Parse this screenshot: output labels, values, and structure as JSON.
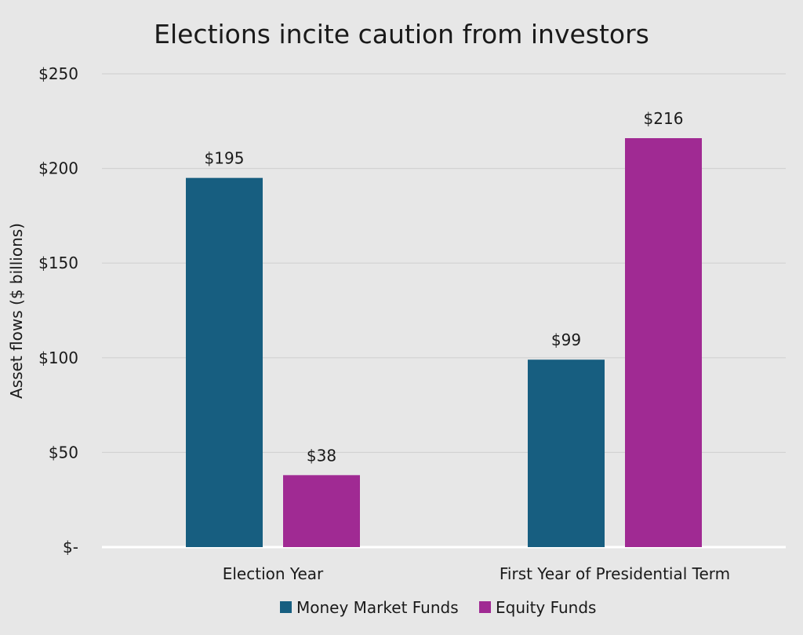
{
  "chart_data": {
    "type": "bar",
    "title": "Elections incite caution from investors",
    "ylabel": "Asset flows ($ billions)",
    "xlabel": "",
    "categories": [
      "Election Year",
      "First Year of Presidential Term"
    ],
    "series": [
      {
        "name": "Money Market Funds",
        "values": [
          195,
          99
        ],
        "labels": [
          "$195",
          "$99"
        ],
        "color": "#175e80"
      },
      {
        "name": "Equity Funds",
        "values": [
          38,
          216
        ],
        "labels": [
          "$38",
          "$216"
        ],
        "color": "#a02a93"
      }
    ],
    "ylim": [
      0,
      250
    ],
    "yticks": [
      0,
      50,
      100,
      150,
      200,
      250
    ],
    "ytick_labels": [
      "$-",
      "$50",
      "$100",
      "$150",
      "$200",
      "$250"
    ],
    "grid": true,
    "legend": "bottom-center",
    "colors": {
      "background": "#e7e7e7",
      "grid": "#d2d2d2",
      "baseline": "#ffffff"
    }
  }
}
